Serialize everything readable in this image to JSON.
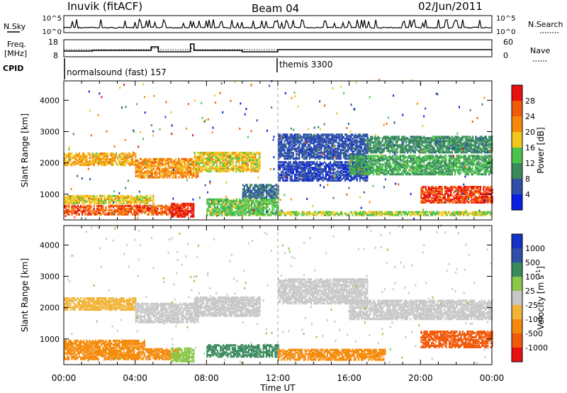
{
  "header": {
    "station": "Inuvik (fitACF)",
    "beam": "Beam 04",
    "date": "02/Jun/2011"
  },
  "top_panels": {
    "nsky_label": "N.Sky",
    "nsearch_label": "N.Search",
    "nsky_ticks": [
      "10^5",
      "10^0"
    ],
    "nsearch_ticks": [
      "10^5",
      "10^0"
    ],
    "freq_label": "Freq.",
    "freq_unit": "[MHz]",
    "freq_ticks": [
      "18",
      "8"
    ],
    "nave_label": "Nave",
    "nave_ticks": [
      "60",
      "0"
    ],
    "cpid_label": "CPID",
    "cpid_segments": [
      {
        "label": "normalsound (fast) 157",
        "start_hour": 0
      },
      {
        "label": "themis 3300",
        "start_hour": 12
      }
    ]
  },
  "colors": {
    "power_scale": [
      "#0a1ee6",
      "#2f4fa8",
      "#3a8a5e",
      "#4cc34a",
      "#f2c81e",
      "#f58a0a",
      "#f25a0a",
      "#e81010"
    ],
    "velocity_scale": [
      "#e81010",
      "#f25a0a",
      "#f58a0a",
      "#f2b438",
      "#c8c8c8",
      "#8ac84a",
      "#3a8a5e",
      "#2f4fa8",
      "#1432c8"
    ]
  },
  "chart_data": [
    {
      "type": "heatmap",
      "title": "",
      "ylabel": "Slant Range [km]",
      "xlabel": "",
      "x_ticks": [
        "00:00",
        "04:00",
        "08:00",
        "12:00",
        "16:00",
        "20:00",
        "00:00"
      ],
      "xlim_hours": [
        0,
        24
      ],
      "y_ticks": [
        "1000",
        "2000",
        "3000",
        "4000"
      ],
      "ylim": [
        180,
        4620
      ],
      "colorbar_label": "Power [dB]",
      "colorbar_ticks": [
        "4",
        "8",
        "12",
        "16",
        "20",
        "24",
        "28"
      ],
      "color_range": [
        0,
        32
      ],
      "echo_bands": [
        {
          "t0": 0.0,
          "t1": 6.5,
          "r0": 320,
          "r1": 620,
          "value": 26
        },
        {
          "t0": 0.0,
          "t1": 5.0,
          "r0": 680,
          "r1": 950,
          "value": 18
        },
        {
          "t0": 0.0,
          "t1": 4.0,
          "r0": 1900,
          "r1": 2300,
          "value": 20
        },
        {
          "t0": 4.0,
          "t1": 7.5,
          "r0": 1500,
          "r1": 2100,
          "value": 22
        },
        {
          "t0": 6.0,
          "t1": 7.3,
          "r0": 250,
          "r1": 700,
          "value": 30
        },
        {
          "t0": 7.3,
          "t1": 11.0,
          "r0": 1700,
          "r1": 2300,
          "value": 18
        },
        {
          "t0": 8.0,
          "t1": 12.0,
          "r0": 300,
          "r1": 800,
          "value": 14
        },
        {
          "t0": 10.0,
          "t1": 12.0,
          "r0": 850,
          "r1": 1300,
          "value": 8
        },
        {
          "t0": 12.0,
          "t1": 24.0,
          "r0": 300,
          "r1": 400,
          "value": 16
        },
        {
          "t0": 12.0,
          "t1": 17.0,
          "r0": 2100,
          "r1": 2900,
          "value": 6
        },
        {
          "t0": 12.0,
          "t1": 17.0,
          "r0": 1400,
          "r1": 2000,
          "value": 5
        },
        {
          "t0": 16.0,
          "t1": 24.0,
          "r0": 1600,
          "r1": 2200,
          "value": 12
        },
        {
          "t0": 17.0,
          "t1": 24.0,
          "r0": 2300,
          "r1": 2800,
          "value": 10
        },
        {
          "t0": 20.0,
          "t1": 24.0,
          "r0": 700,
          "r1": 1200,
          "value": 28
        }
      ]
    },
    {
      "type": "heatmap",
      "title": "",
      "ylabel": "Slant Range [km]",
      "xlabel": "Time UT",
      "x_ticks": [
        "00:00",
        "04:00",
        "08:00",
        "12:00",
        "16:00",
        "20:00",
        "00:00"
      ],
      "xlim_hours": [
        0,
        24
      ],
      "y_ticks": [
        "1000",
        "2000",
        "3000",
        "4000"
      ],
      "ylim": [
        180,
        4620
      ],
      "colorbar_label": "Velocity [m s^-1]",
      "colorbar_ticks": [
        "1000",
        "500",
        "100",
        "25",
        "-25",
        "-100",
        "-500",
        "-1000"
      ],
      "echo_bands": [
        {
          "t0": 0.0,
          "t1": 6.5,
          "r0": 320,
          "r1": 650,
          "value": -400
        },
        {
          "t0": 0.0,
          "t1": 4.5,
          "r0": 680,
          "r1": 950,
          "value": -150
        },
        {
          "t0": 0.0,
          "t1": 4.0,
          "r0": 1900,
          "r1": 2300,
          "value": -60
        },
        {
          "t0": 4.0,
          "t1": 7.5,
          "r0": 1500,
          "r1": 2100,
          "value": 0
        },
        {
          "t0": 6.0,
          "t1": 7.3,
          "r0": 250,
          "r1": 700,
          "value": 40
        },
        {
          "t0": 7.3,
          "t1": 11.0,
          "r0": 1700,
          "r1": 2300,
          "value": 0
        },
        {
          "t0": 8.0,
          "t1": 12.0,
          "r0": 400,
          "r1": 800,
          "value": 150
        },
        {
          "t0": 12.0,
          "t1": 17.0,
          "r0": 2100,
          "r1": 2900,
          "value": 0
        },
        {
          "t0": 12.0,
          "t1": 18.0,
          "r0": 300,
          "r1": 650,
          "value": -300
        },
        {
          "t0": 16.0,
          "t1": 24.0,
          "r0": 1600,
          "r1": 2200,
          "value": 0
        },
        {
          "t0": 20.0,
          "t1": 24.0,
          "r0": 700,
          "r1": 1200,
          "value": -700
        }
      ]
    }
  ]
}
